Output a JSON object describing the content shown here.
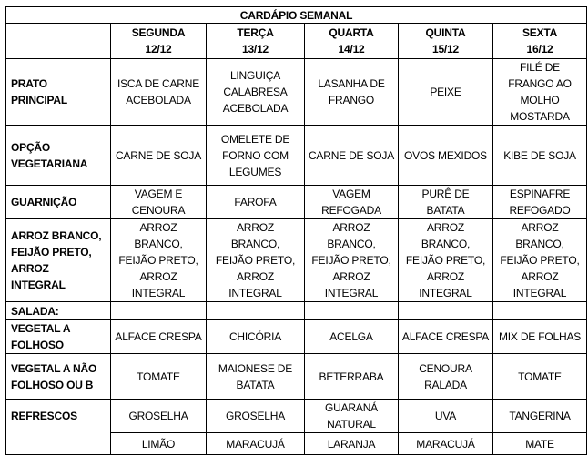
{
  "title": "CARDÁPIO SEMANAL",
  "days": [
    {
      "name": "SEGUNDA",
      "date": "12/12"
    },
    {
      "name": "TERÇA",
      "date": "13/12"
    },
    {
      "name": "QUARTA",
      "date": "14/12"
    },
    {
      "name": "QUINTA",
      "date": "15/12"
    },
    {
      "name": "SEXTA",
      "date": "16/12"
    }
  ],
  "rows": [
    {
      "label": "PRATO\nPRINCIPAL",
      "cells": [
        "ISCA DE CARNE\nACEBOLADA",
        "LINGUIÇA\nCALABRESA\nACEBOLADA",
        "LASANHA DE\nFRANGO",
        "PEIXE",
        "FILÉ DE\nFRANGO AO\nMOLHO\nMOSTARDA"
      ]
    },
    {
      "label": "OPÇÃO\nVEGETARIANA",
      "cells": [
        "CARNE DE SOJA",
        "OMELETE DE\nFORNO COM\nLEGUMES",
        "CARNE DE SOJA",
        "OVOS MEXIDOS",
        "KIBE DE SOJA"
      ]
    },
    {
      "label": "GUARNIÇÃO",
      "cells": [
        "VAGEM E\nCENOURA",
        "FAROFA",
        "VAGEM\nREFOGADA",
        "PURÊ DE\nBATATA",
        "ESPINAFRE\nREFOGADO"
      ]
    },
    {
      "label": "ARROZ BRANCO,\nFEIJÃO PRETO,\nARROZ\nINTEGRAL",
      "cells": [
        "ARROZ\nBRANCO,\nFEIJÃO PRETO,\nARROZ\nINTEGRAL",
        "ARROZ\nBRANCO,\nFEIJÃO PRETO,\nARROZ\nINTEGRAL",
        "ARROZ\nBRANCO,\nFEIJÃO PRETO,\nARROZ\nINTEGRAL",
        "ARROZ\nBRANCO,\nFEIJÃO PRETO,\nARROZ\nINTEGRAL",
        "ARROZ\nBRANCO,\nFEIJÃO PRETO,\nARROZ\nINTEGRAL"
      ]
    },
    {
      "label": "SALADA:",
      "cells": [
        "",
        "",
        "",
        "",
        ""
      ]
    },
    {
      "label": "VEGETAL A\nFOLHOSO",
      "cells": [
        "ALFACE CRESPA",
        "CHICÓRIA",
        "ACELGA",
        "ALFACE CRESPA",
        "MIX DE FOLHAS"
      ]
    },
    {
      "label": "VEGETAL A NÃO\nFOLHOSO OU B",
      "cells": [
        "TOMATE",
        "MAIONESE DE\nBATATA",
        "BETERRABA",
        "CENOURA\nRALADA",
        "TOMATE"
      ]
    }
  ],
  "refrescos": {
    "label": "REFRESCOS",
    "row1": [
      "GROSELHA",
      "GROSELHA",
      "GUARANÁ\nNATURAL",
      "UVA",
      "TANGERINA"
    ],
    "row2": [
      "LIMÃO",
      "MARACUJÁ",
      "LARANJA",
      "MARACUJÁ",
      "MATE"
    ]
  }
}
